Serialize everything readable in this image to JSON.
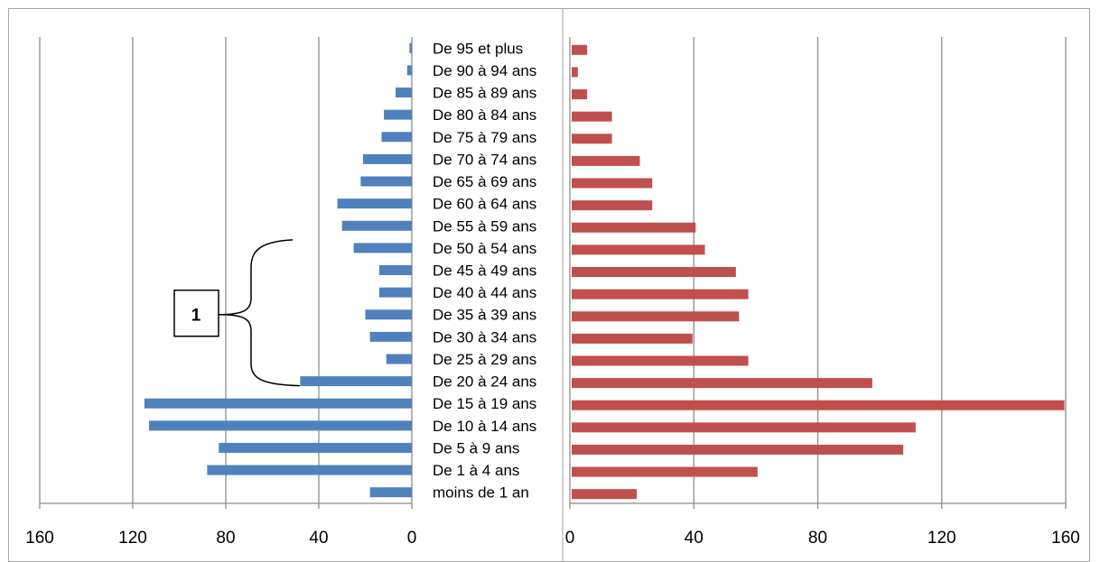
{
  "chart_data": {
    "type": "bar",
    "orientation": "horizontal",
    "layout": "population-pyramid",
    "categories": [
      "moins de 1 an",
      "De 1 à 4 ans",
      "De 5 à 9 ans",
      "De 10 à 14 ans",
      "De 15 à 19 ans",
      "De 20 à 24 ans",
      "De 25 à 29 ans",
      "De 30 à 34 ans",
      "De 35 à 39 ans",
      "De 40 à 44 ans",
      "De 45 à 49 ans",
      "De 50 à 54 ans",
      "De 55 à 59 ans",
      "De 60 à 64 ans",
      "De 65 à 69 ans",
      "De 70 à 74 ans",
      "De 75 à 79 ans",
      "De 80 à 84 ans",
      "De 85 à 89 ans",
      "De 90 à 94 ans",
      "De 95 et plus"
    ],
    "series": [
      {
        "side": "left",
        "color": "#4f81bd",
        "values": [
          18,
          88,
          83,
          113,
          115,
          48,
          11,
          18,
          20,
          14,
          14,
          25,
          30,
          32,
          22,
          21,
          13,
          12,
          7,
          2,
          1
        ]
      },
      {
        "side": "right",
        "color": "#c0504d",
        "values": [
          21,
          60,
          107,
          111,
          159,
          97,
          57,
          39,
          54,
          57,
          53,
          43,
          40,
          26,
          26,
          22,
          13,
          13,
          5,
          2,
          5
        ]
      }
    ],
    "left_axis": {
      "xlim": [
        0,
        160
      ],
      "ticks": [
        160,
        120,
        80,
        40,
        0
      ],
      "reversed": true
    },
    "right_axis": {
      "xlim": [
        0,
        160
      ],
      "ticks": [
        0,
        40,
        80,
        120,
        160
      ]
    },
    "grid": true,
    "legend": "none",
    "annotation": {
      "label": "1",
      "range": [
        "De 20 à 24 ans",
        "De 50 à 54 ans"
      ]
    }
  }
}
